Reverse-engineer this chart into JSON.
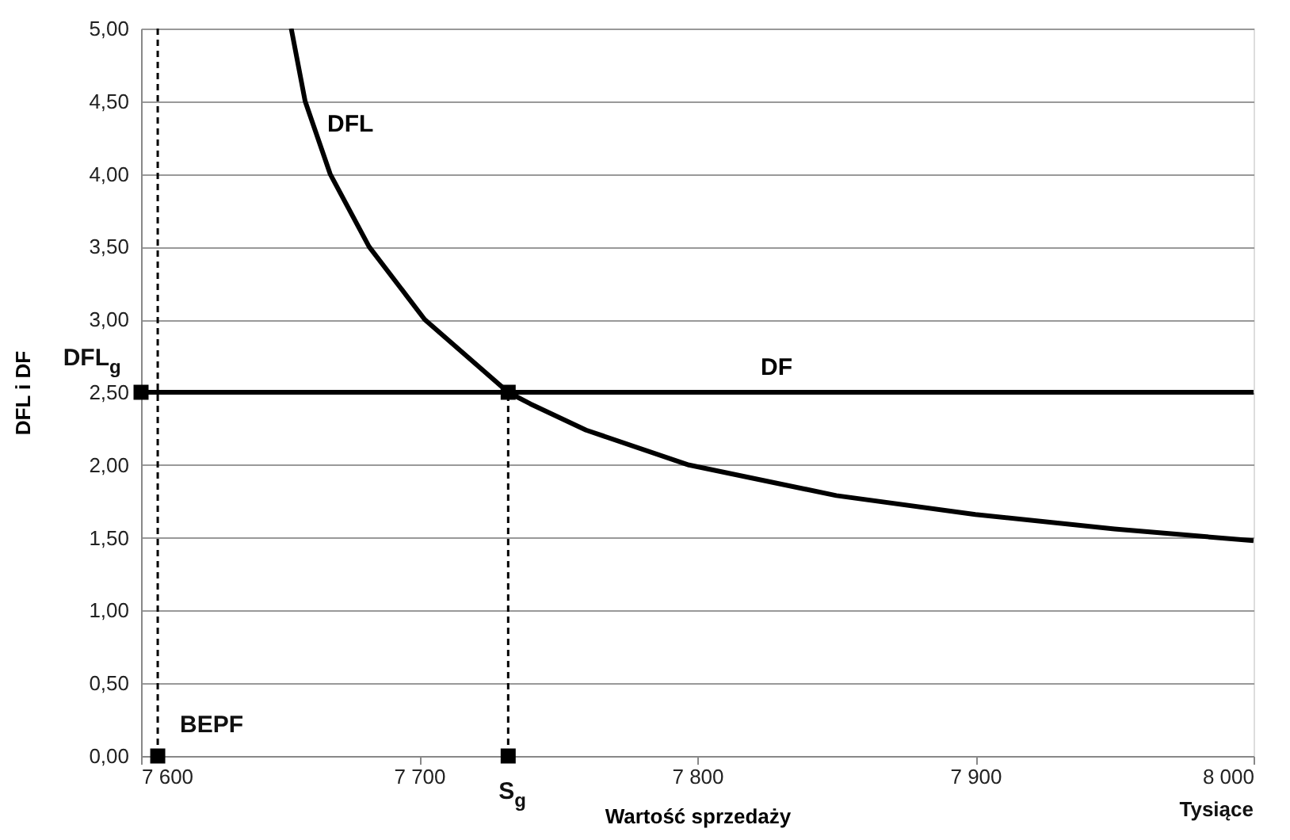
{
  "chart_data": {
    "type": "line",
    "xlabel": "Wartość sprzedaży",
    "ylabel": "DFL i DF",
    "xlim": [
      7600,
      8000
    ],
    "xticks": [
      {
        "value": 7600,
        "label": "7 600"
      },
      {
        "value": 7700,
        "label": "7 700"
      },
      {
        "value": 7800,
        "label": "7 800"
      },
      {
        "value": 7900,
        "label": "7 900"
      },
      {
        "value": 8000,
        "label": "8 000"
      }
    ],
    "ylim": [
      0,
      5
    ],
    "yticks": [
      {
        "value": 0,
        "label": "0,00"
      },
      {
        "value": 0.5,
        "label": "0,50"
      },
      {
        "value": 1,
        "label": "1,00"
      },
      {
        "value": 1.5,
        "label": "1,50"
      },
      {
        "value": 2,
        "label": "2,00"
      },
      {
        "value": 2.5,
        "label": "2,50"
      },
      {
        "value": 3,
        "label": "3,00"
      },
      {
        "value": 3.5,
        "label": "3,50"
      },
      {
        "value": 4,
        "label": "4,00"
      },
      {
        "value": 4.5,
        "label": "4,50"
      },
      {
        "value": 5,
        "label": "5,00"
      }
    ],
    "grid": "y",
    "series": [
      {
        "name": "DFL",
        "color": "#000000",
        "line_style": "solid",
        "x": [
          7654,
          7659,
          7668,
          7682,
          7702,
          7732,
          7740,
          7760,
          7797,
          7850,
          7900,
          7950,
          8000
        ],
        "values": [
          5.0,
          4.5,
          4.0,
          3.5,
          3.0,
          2.5,
          2.42,
          2.24,
          2.0,
          1.79,
          1.66,
          1.56,
          1.48
        ]
      },
      {
        "name": "DF",
        "color": "#000000",
        "line_style": "solid",
        "x": [
          7600,
          8000
        ],
        "values": [
          2.5,
          2.5
        ]
      },
      {
        "color": "#000000",
        "line_style": "dashed",
        "x": [
          7606,
          7606
        ],
        "values": [
          0,
          5
        ]
      },
      {
        "color": "#000000",
        "line_style": "dashed",
        "x": [
          7732,
          7732
        ],
        "values": [
          0,
          2.5
        ]
      },
      {
        "type": "scatter",
        "color": "#000000",
        "marker": "square",
        "x": [
          7600,
          7606,
          7732,
          7732
        ],
        "values": [
          2.5,
          0,
          0,
          2.5
        ]
      }
    ],
    "annotations": [
      {
        "text": "DFL$_{g}$",
        "x": 7600,
        "y": 2.5
      },
      {
        "text": "BEPF",
        "x": 7606,
        "y": 0
      },
      {
        "text": "S$_{g}$",
        "x": 7732,
        "y": 0
      },
      "Tysiące"
    ]
  }
}
